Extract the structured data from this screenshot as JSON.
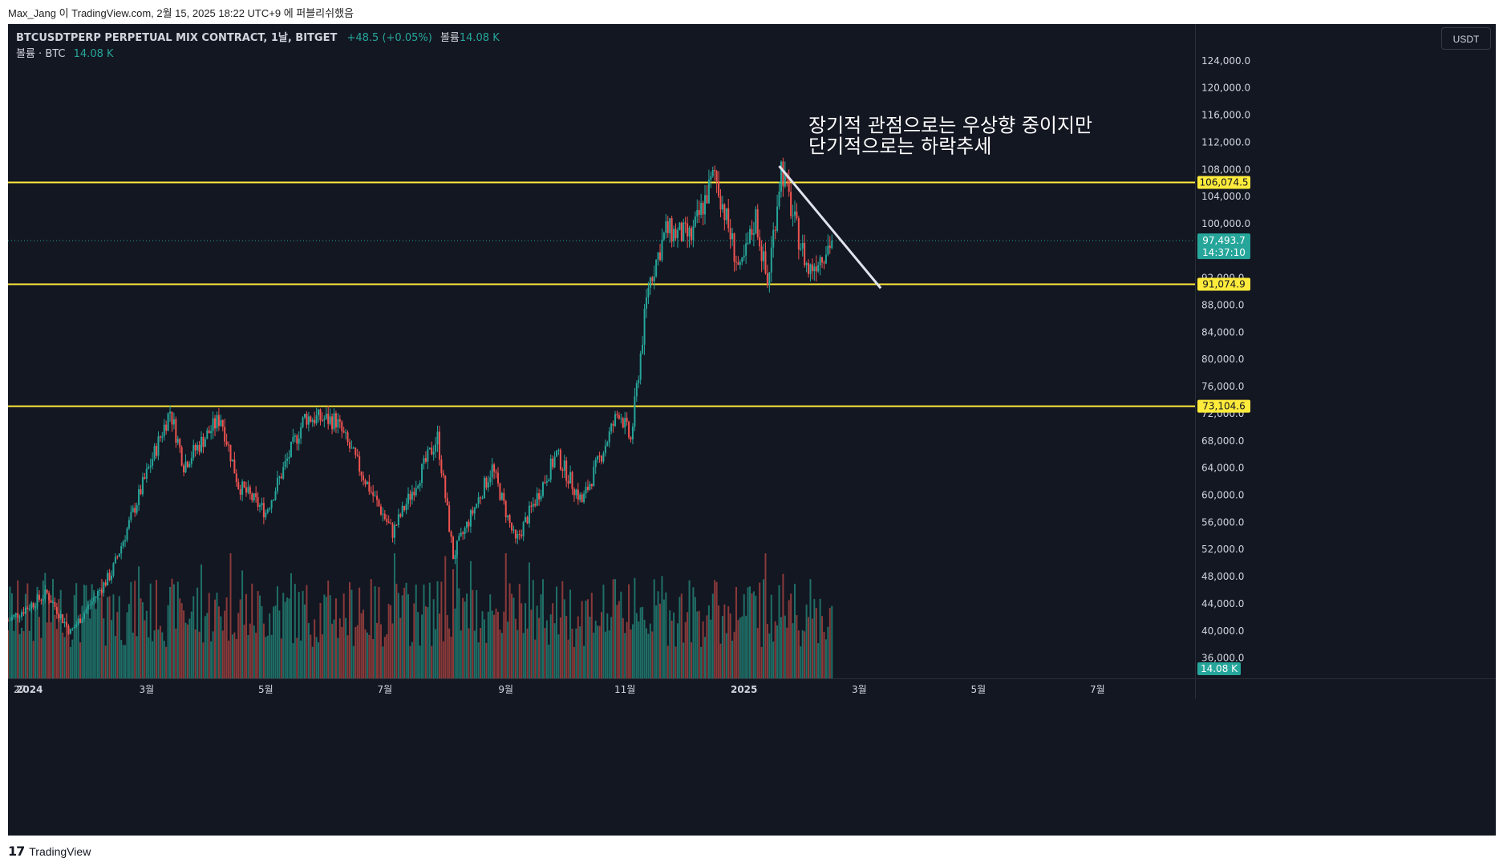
{
  "header": {
    "text": "Max_Jang 이 TradingView.com, 2월 15, 2025 18:22 UTC+9 에 퍼블리쉬했음"
  },
  "legend": {
    "symbol": "BTCUSDTPERP PERPETUAL MIX CONTRACT, 1날, BITGET",
    "change": "+48.5 (+0.05%)",
    "volume_label": "볼륨",
    "volume_value": "14.08 K",
    "line2_label": "볼륨 · BTC",
    "line2_value": "14.08 K"
  },
  "currency": "USDT",
  "footer": {
    "brand": "TradingView"
  },
  "colors": {
    "up": "#26a69a",
    "down": "#ef5350",
    "level": "#ffeb3b",
    "background": "#131722",
    "trendline": "#e0e3eb"
  },
  "chart_data": {
    "type": "candlestick",
    "yunit": "USDT",
    "ylim": [
      33000,
      128000
    ],
    "y_ticks": [
      36000,
      40000,
      44000,
      48000,
      52000,
      56000,
      60000,
      64000,
      68000,
      72000,
      76000,
      80000,
      84000,
      88000,
      92000,
      96000,
      100000,
      104000,
      108000,
      112000,
      116000,
      120000,
      124000
    ],
    "y_tick_labels": [
      "36,000.0",
      "40,000.0",
      "44,000.0",
      "48,000.0",
      "52,000.0",
      "56,000.0",
      "60,000.0",
      "64,000.0",
      "68,000.0",
      "72,000.0",
      "76,000.0",
      "80,000.0",
      "84,000.0",
      "88,000.0",
      "92,000.0",
      "96,000.0",
      "100,000.0",
      "104,000.0",
      "108,000.0",
      "112,000.0",
      "116,000.0",
      "120,000.0",
      "124,000.0"
    ],
    "x_ticks": [
      {
        "date": "2023-12-27",
        "label": "27"
      },
      {
        "date": "2024-01-01",
        "label": "2024"
      },
      {
        "date": "2024-03-01",
        "label": "3월"
      },
      {
        "date": "2024-05-01",
        "label": "5월"
      },
      {
        "date": "2024-07-01",
        "label": "7월"
      },
      {
        "date": "2024-09-01",
        "label": "9월"
      },
      {
        "date": "2024-11-01",
        "label": "11월"
      },
      {
        "date": "2025-01-01",
        "label": "2025"
      },
      {
        "date": "2025-03-01",
        "label": "3월"
      },
      {
        "date": "2025-05-01",
        "label": "5월"
      },
      {
        "date": "2025-07-01",
        "label": "7월"
      }
    ],
    "xlim": [
      "2023-12-21",
      "2025-08-20"
    ],
    "last_bar_date": "2025-02-15",
    "price_anchors": [
      [
        "2023-12-21",
        41500
      ],
      [
        "2024-01-10",
        45500
      ],
      [
        "2024-01-22",
        39800
      ],
      [
        "2024-02-12",
        48500
      ],
      [
        "2024-02-28",
        61500
      ],
      [
        "2024-03-13",
        72500
      ],
      [
        "2024-03-20",
        64500
      ],
      [
        "2024-04-08",
        71500
      ],
      [
        "2024-04-17",
        61500
      ],
      [
        "2024-05-01",
        57500
      ],
      [
        "2024-05-21",
        71500
      ],
      [
        "2024-06-06",
        71000
      ],
      [
        "2024-06-24",
        60500
      ],
      [
        "2024-07-05",
        54500
      ],
      [
        "2024-07-28",
        68500
      ],
      [
        "2024-08-05",
        51000
      ],
      [
        "2024-08-25",
        64000
      ],
      [
        "2024-09-06",
        53000
      ],
      [
        "2024-09-27",
        66000
      ],
      [
        "2024-10-10",
        59000
      ],
      [
        "2024-10-29",
        72500
      ],
      [
        "2024-11-04",
        68000
      ],
      [
        "2024-11-13",
        91000
      ],
      [
        "2024-11-22",
        99000
      ],
      [
        "2024-12-05",
        98000
      ],
      [
        "2024-12-17",
        107500
      ],
      [
        "2024-12-30",
        92500
      ],
      [
        "2025-01-07",
        101000
      ],
      [
        "2025-01-13",
        91000
      ],
      [
        "2025-01-20",
        108500
      ],
      [
        "2025-01-27",
        100000
      ],
      [
        "2025-02-03",
        93000
      ],
      [
        "2025-02-15",
        97493.7
      ]
    ],
    "volume_max": 55000,
    "levels": [
      {
        "value": 106074.5,
        "label": "106,074.5"
      },
      {
        "value": 91074.9,
        "label": "91,074.9"
      },
      {
        "value": 73104.6,
        "label": "73,104.6"
      }
    ],
    "last_price": {
      "value": 97493.7,
      "label": "97,493.7",
      "countdown": "14:37:10"
    },
    "last_volume_label": "14.08 K",
    "trendline": [
      {
        "date": "2025-01-19",
        "price": 108500
      },
      {
        "date": "2025-03-12",
        "price": 90500
      }
    ],
    "annotation": {
      "lines": [
        "장기적 관점으로는 우상향 중이지만",
        "단기적으로는 하락추세"
      ],
      "date": "2025-02-03",
      "price": 113500
    }
  }
}
